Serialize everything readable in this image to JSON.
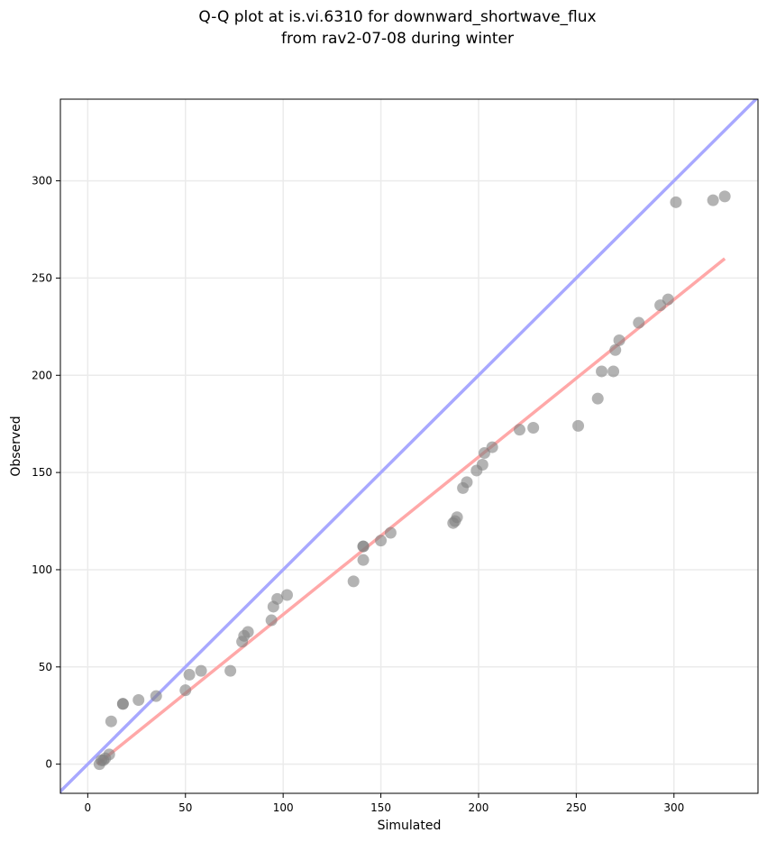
{
  "chart_data": {
    "type": "scatter",
    "title_line1": "Q-Q plot at is.vi.6310 for downward_shortwave_flux",
    "title_line2": "from rav2-07-08 during winter",
    "xlabel": "Simulated",
    "ylabel": "Observed",
    "xlim": [
      -14,
      343
    ],
    "ylim": [
      -15,
      342
    ],
    "xticks": [
      0,
      50,
      100,
      150,
      200,
      250,
      300
    ],
    "yticks": [
      0,
      50,
      100,
      150,
      200,
      250,
      300
    ],
    "grid": true,
    "identity_line": {
      "color": "#a8a8ff"
    },
    "fit_line": {
      "color": "#ffa8a8",
      "x": [
        5,
        326
      ],
      "y": [
        0,
        260
      ]
    },
    "point_color": "#808080",
    "points": [
      [
        6,
        0
      ],
      [
        7,
        2
      ],
      [
        8,
        2
      ],
      [
        9,
        3
      ],
      [
        11,
        5
      ],
      [
        12,
        22
      ],
      [
        18,
        31
      ],
      [
        18,
        31
      ],
      [
        26,
        33
      ],
      [
        35,
        35
      ],
      [
        50,
        38
      ],
      [
        52,
        46
      ],
      [
        58,
        48
      ],
      [
        73,
        48
      ],
      [
        79,
        63
      ],
      [
        80,
        66
      ],
      [
        82,
        68
      ],
      [
        94,
        74
      ],
      [
        95,
        81
      ],
      [
        97,
        85
      ],
      [
        102,
        87
      ],
      [
        136,
        94
      ],
      [
        141,
        105
      ],
      [
        141,
        112
      ],
      [
        141,
        112
      ],
      [
        150,
        115
      ],
      [
        155,
        119
      ],
      [
        187,
        124
      ],
      [
        188,
        125
      ],
      [
        189,
        127
      ],
      [
        192,
        142
      ],
      [
        194,
        145
      ],
      [
        199,
        151
      ],
      [
        202,
        154
      ],
      [
        203,
        160
      ],
      [
        207,
        163
      ],
      [
        221,
        172
      ],
      [
        228,
        173
      ],
      [
        251,
        174
      ],
      [
        261,
        188
      ],
      [
        263,
        202
      ],
      [
        269,
        202
      ],
      [
        270,
        213
      ],
      [
        272,
        218
      ],
      [
        282,
        227
      ],
      [
        293,
        236
      ],
      [
        297,
        239
      ],
      [
        301,
        289
      ],
      [
        320,
        290
      ],
      [
        326,
        292
      ]
    ]
  }
}
